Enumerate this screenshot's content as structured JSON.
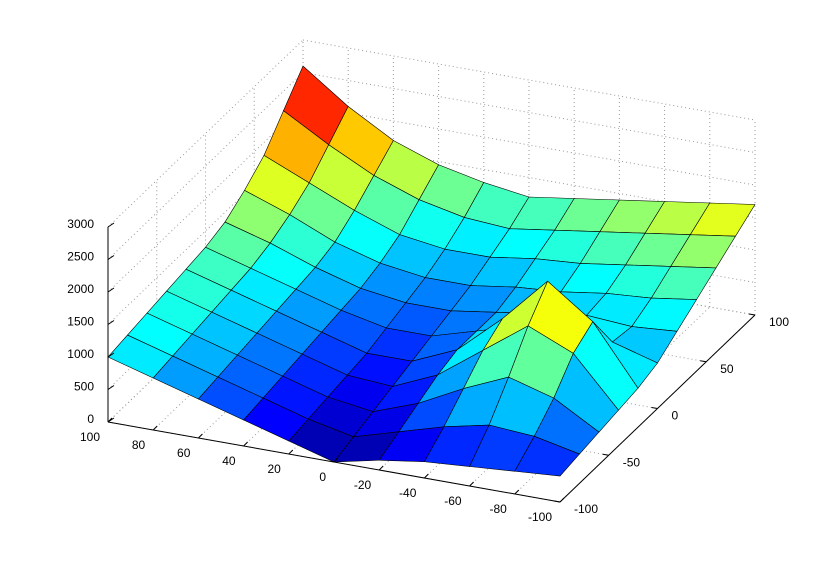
{
  "chart_data": {
    "type": "surface",
    "x": [
      100,
      80,
      60,
      40,
      20,
      0,
      -20,
      -40,
      -60,
      -80,
      -100
    ],
    "y": [
      -100,
      -80,
      -60,
      -40,
      -20,
      0,
      20,
      40,
      60,
      80,
      100
    ],
    "z": [
      [
        1000,
        800,
        600,
        400,
        200,
        0,
        150,
        250,
        300,
        350,
        400
      ],
      [
        1050,
        850,
        650,
        450,
        250,
        100,
        300,
        500,
        650,
        600,
        450
      ],
      [
        1100,
        900,
        700,
        500,
        300,
        200,
        450,
        800,
        1100,
        900,
        500
      ],
      [
        1150,
        950,
        750,
        550,
        350,
        300,
        600,
        1100,
        1600,
        1300,
        550
      ],
      [
        1200,
        1000,
        800,
        600,
        400,
        400,
        700,
        1300,
        2000,
        1500,
        600
      ],
      [
        1250,
        1050,
        850,
        650,
        500,
        500,
        700,
        900,
        1100,
        900,
        700
      ],
      [
        1350,
        1150,
        900,
        700,
        600,
        600,
        700,
        800,
        900,
        850,
        900
      ],
      [
        1550,
        1300,
        1000,
        800,
        700,
        700,
        800,
        850,
        950,
        1000,
        1100
      ],
      [
        1800,
        1500,
        1200,
        950,
        850,
        850,
        950,
        1000,
        1100,
        1200,
        1300
      ],
      [
        2200,
        1800,
        1450,
        1200,
        1050,
        1000,
        1100,
        1200,
        1300,
        1400,
        1500
      ],
      [
        2600,
        2100,
        1700,
        1450,
        1300,
        1200,
        1300,
        1400,
        1500,
        1600,
        1700
      ]
    ],
    "xlim": [
      100,
      -100
    ],
    "ylim": [
      -100,
      100
    ],
    "zlim": [
      0,
      3000
    ],
    "xticks": [
      100,
      80,
      60,
      40,
      20,
      0,
      -20,
      -40,
      -60,
      -80,
      -100
    ],
    "yticks": [
      -100,
      -50,
      0,
      50,
      100
    ],
    "zticks": [
      0,
      500,
      1000,
      1500,
      2000,
      2500,
      3000
    ],
    "grid": true,
    "colormap": "jet"
  }
}
